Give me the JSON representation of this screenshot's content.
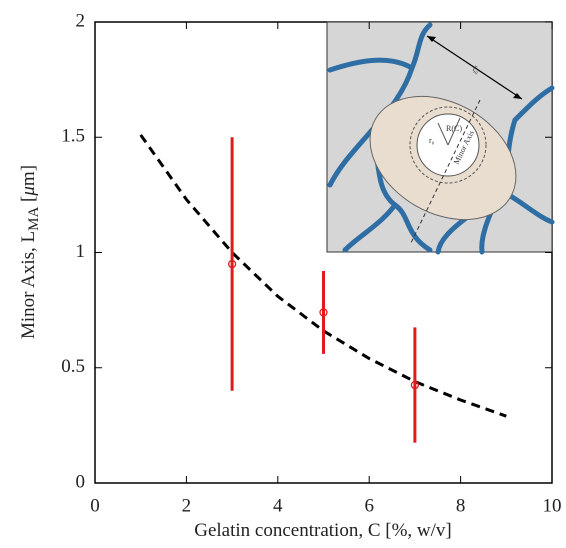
{
  "chart_data": {
    "type": "scatter",
    "xlabel": "Gelatin concentration, C [%, w/v]",
    "ylabel_main": "Minor Axis, L",
    "ylabel_sub": "MA",
    "ylabel_unit_open": " [",
    "ylabel_unit_mu": "μ",
    "ylabel_unit_close": "m]",
    "xlim": [
      0,
      10
    ],
    "xticks": [
      0,
      2,
      4,
      6,
      8,
      10
    ],
    "ylim": [
      0,
      2
    ],
    "yticks": [
      0,
      0.5,
      1,
      1.5,
      2
    ],
    "points": {
      "x": [
        3,
        5,
        7
      ],
      "values": [
        0.95,
        0.74,
        0.425
      ],
      "errors": [
        0.55,
        0.18,
        0.25
      ],
      "color": "#e31a1c"
    },
    "fit": {
      "x": [
        1,
        2,
        3,
        4,
        5,
        6,
        7,
        8,
        9
      ],
      "values": [
        1.51,
        1.23,
        1.0,
        0.81,
        0.66,
        0.54,
        0.44,
        0.36,
        0.29
      ],
      "color": "#000000",
      "dashed": true
    },
    "inset": {
      "labels": [
        "ξ₀",
        "R(C)",
        "r₀",
        "Minor Axis"
      ]
    }
  }
}
